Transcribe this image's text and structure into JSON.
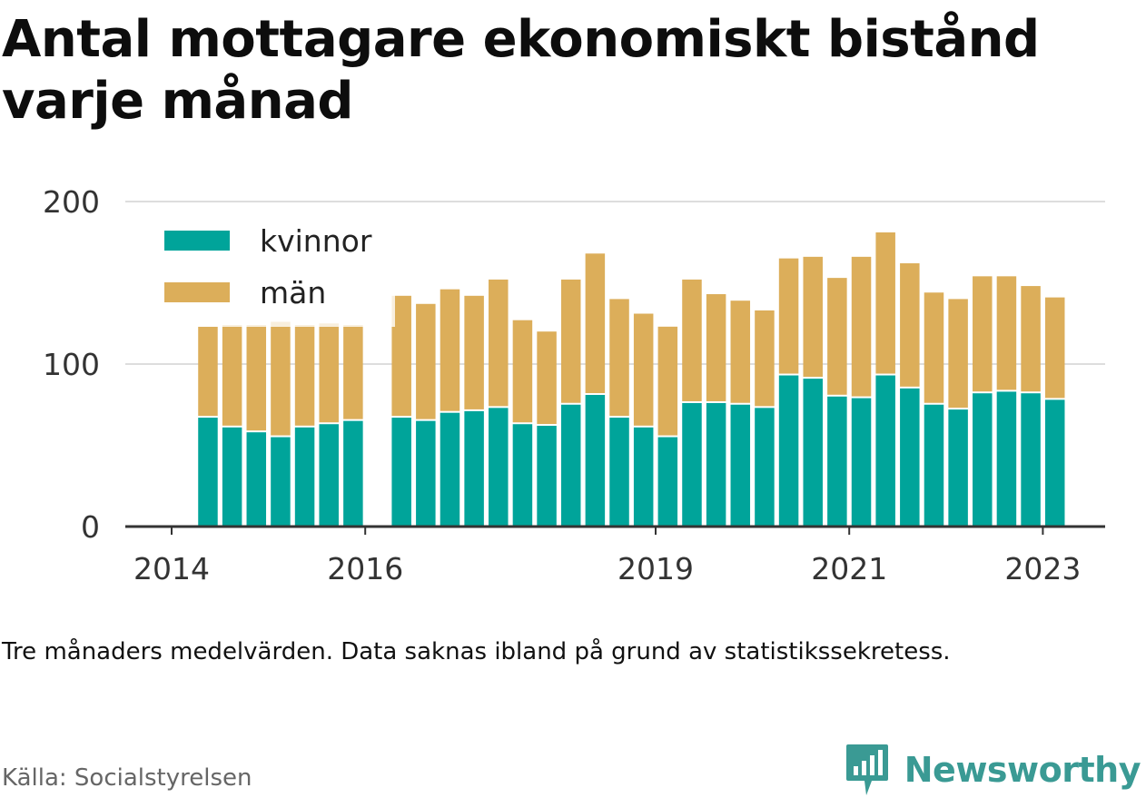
{
  "title": "Antal mottagare ekonomiskt bistånd varje månad",
  "note": "Tre månaders medelvärden. Data saknas ibland på grund av statistikssekretess.",
  "source": "Källa: Socialstyrelsen",
  "brand": {
    "name": "Newsworthy",
    "icon": "bar-chart-speech-bubble-icon",
    "color": "#3a9a94"
  },
  "colors": {
    "kvinnor": "#00a49a",
    "man": "#dcae5a",
    "grid": "#dddddd",
    "axis": "#333333"
  },
  "chart_data": {
    "type": "bar",
    "stacked": true,
    "title": "Antal mottagare ekonomiskt bistånd varje månad",
    "xlabel": "",
    "ylabel": "",
    "ylim": [
      0,
      200
    ],
    "yticks": [
      "0",
      "100",
      "200"
    ],
    "xticks": [
      {
        "label": "2014",
        "t": 2014.0
      },
      {
        "label": "2016",
        "t": 2016.0
      },
      {
        "label": "2019",
        "t": 2019.0
      },
      {
        "label": "2021",
        "t": 2021.0
      },
      {
        "label": "2023",
        "t": 2023.0
      }
    ],
    "legend": "top-left",
    "grid": true,
    "gaps_at": [
      2016.125
    ],
    "x": [
      2014.375,
      2014.625,
      2014.875,
      2015.125,
      2015.375,
      2015.625,
      2015.875,
      2016.375,
      2016.625,
      2016.875,
      2017.125,
      2017.375,
      2017.625,
      2017.875,
      2018.125,
      2018.375,
      2018.625,
      2018.875,
      2019.125,
      2019.375,
      2019.625,
      2019.875,
      2020.125,
      2020.375,
      2020.625,
      2020.875,
      2021.125,
      2021.375,
      2021.625,
      2021.875,
      2022.125,
      2022.375,
      2022.625,
      2022.875,
      2023.125
    ],
    "series": [
      {
        "name": "kvinnor",
        "color": "#00a49a",
        "values": [
          67,
          61,
          58,
          55,
          61,
          63,
          65,
          67,
          65,
          70,
          71,
          73,
          63,
          62,
          75,
          81,
          67,
          61,
          55,
          76,
          76,
          75,
          73,
          93,
          91,
          80,
          79,
          93,
          85,
          75,
          72,
          82,
          83,
          82,
          78
        ]
      },
      {
        "name": "män",
        "color": "#dcae5a",
        "values": [
          56,
          63,
          66,
          71,
          63,
          62,
          59,
          75,
          72,
          76,
          71,
          79,
          64,
          58,
          77,
          87,
          73,
          70,
          68,
          76,
          67,
          64,
          60,
          72,
          75,
          73,
          87,
          88,
          77,
          69,
          68,
          72,
          71,
          66,
          63
        ]
      }
    ]
  }
}
